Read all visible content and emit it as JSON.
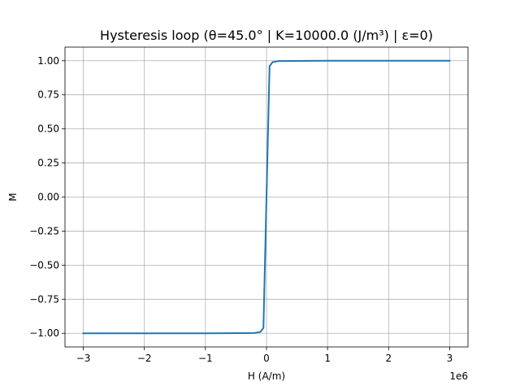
{
  "chart_data": {
    "type": "line",
    "title": "Hysteresis loop (θ=45.0° | K=10000.0 (J/m³) | ε=0)",
    "xlabel": "H (A/m)",
    "ylabel": "M",
    "x_offset_label": "1e6",
    "x_scale": 1000000,
    "xlim": [
      -3300000,
      3300000
    ],
    "ylim": [
      -1.1,
      1.1
    ],
    "grid": true,
    "legend": "none",
    "x_ticks": [
      -3000000,
      -2000000,
      -1000000,
      0,
      1000000,
      2000000,
      3000000
    ],
    "x_tick_labels": [
      "−3",
      "−2",
      "−1",
      "0",
      "1",
      "2",
      "3"
    ],
    "y_ticks": [
      -1.0,
      -0.75,
      -0.5,
      -0.25,
      0.0,
      0.25,
      0.5,
      0.75,
      1.0
    ],
    "y_tick_labels": [
      "−1.00",
      "−0.75",
      "−0.50",
      "−0.25",
      "0.00",
      "0.25",
      "0.50",
      "0.75",
      "1.00"
    ],
    "series": [
      {
        "color": "#1f77b4",
        "x": [
          -3000000,
          -1000000,
          -200000,
          -100000,
          -50000,
          0,
          50000,
          100000,
          200000,
          1000000,
          3000000
        ],
        "y": [
          -1.0,
          -1.0,
          -0.998,
          -0.99,
          -0.96,
          0.0,
          0.96,
          0.99,
          0.998,
          1.0,
          1.0
        ]
      }
    ]
  }
}
